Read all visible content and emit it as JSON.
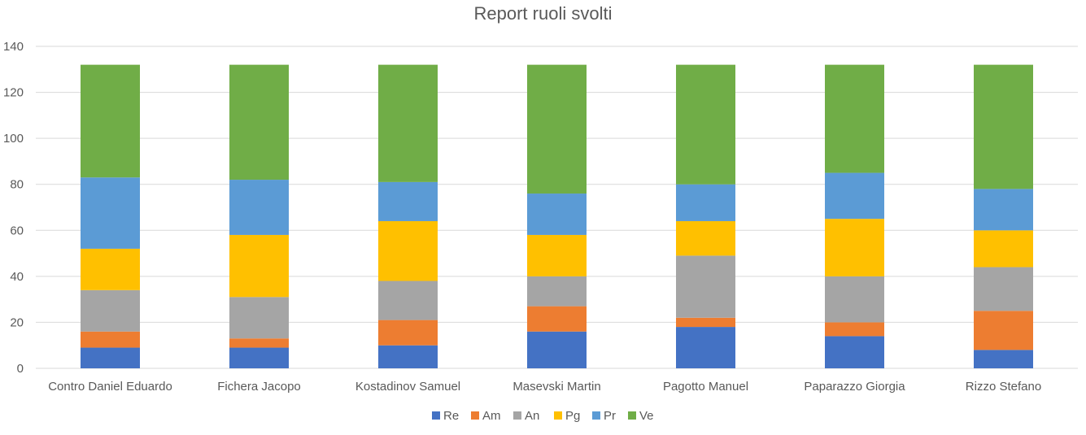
{
  "chart_data": {
    "type": "bar",
    "stacked": true,
    "title": "Report ruoli svolti",
    "xlabel": "",
    "ylabel": "",
    "ylim": [
      0,
      140
    ],
    "yticks": [
      "0",
      "20",
      "40",
      "60",
      "80",
      "100",
      "120",
      "140"
    ],
    "grid": true,
    "legend_position": "bottom",
    "categories": [
      "Contro Daniel Eduardo",
      "Fichera Jacopo",
      "Kostadinov Samuel",
      "Masevski Martin",
      "Pagotto Manuel",
      "Paparazzo Giorgia",
      "Rizzo Stefano"
    ],
    "series": [
      {
        "name": "Re",
        "color": "#4472C4",
        "values": [
          9,
          9,
          10,
          16,
          18,
          14,
          8
        ]
      },
      {
        "name": "Am",
        "color": "#ED7D31",
        "values": [
          7,
          4,
          11,
          11,
          4,
          6,
          17
        ]
      },
      {
        "name": "An",
        "color": "#A5A5A5",
        "values": [
          18,
          18,
          17,
          13,
          27,
          20,
          19
        ]
      },
      {
        "name": "Pg",
        "color": "#FFC000",
        "values": [
          18,
          27,
          26,
          18,
          15,
          25,
          16
        ]
      },
      {
        "name": "Pr",
        "color": "#5B9BD5",
        "values": [
          31,
          24,
          17,
          18,
          16,
          20,
          18
        ]
      },
      {
        "name": "Ve",
        "color": "#70AD47",
        "values": [
          49,
          50,
          51,
          56,
          52,
          47,
          54
        ]
      }
    ]
  }
}
